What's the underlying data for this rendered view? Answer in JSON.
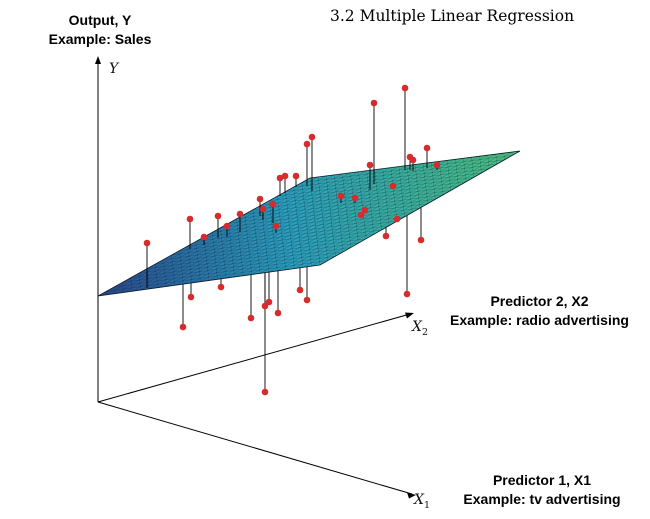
{
  "heading": "3.2 Multiple Linear Regression",
  "output_annotation": {
    "line1": "Output, Y",
    "line2": "Example: Sales"
  },
  "predictor2_annotation": {
    "line1": "Predictor 2, X2",
    "line2": "Example: radio advertising"
  },
  "predictor1_annotation": {
    "line1": "Predictor 1, X1",
    "line2": "Example: tv advertising"
  },
  "axis_labels": {
    "y": "Y",
    "x2": {
      "base": "X",
      "sub": "2"
    },
    "x1": {
      "base": "X",
      "sub": "1"
    }
  },
  "colors": {
    "points": "#d62c2c",
    "plane_low": "#2a4a8e",
    "plane_mid": "#2b9fbe",
    "plane_high": "#4bbf7f",
    "mesh": "#0b1a2a",
    "axes": "#000000",
    "residual_lines": "#000000"
  }
}
